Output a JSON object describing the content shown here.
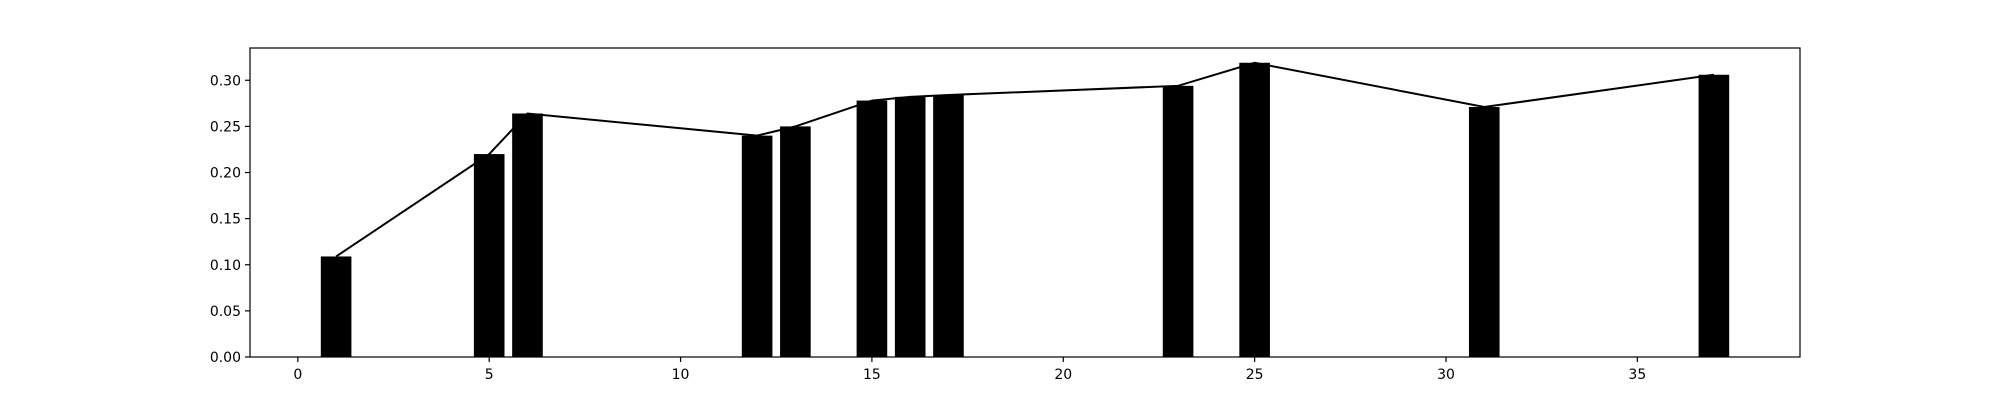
{
  "chart_data": {
    "type": "bar",
    "title": "",
    "xlabel": "",
    "ylabel": "",
    "xlim": [
      -1.25,
      39.25
    ],
    "ylim": [
      0,
      0.335
    ],
    "grid": false,
    "bar_width": 0.8,
    "bar_color": "#000000",
    "line_color": "#000000",
    "x_ticks": [
      0,
      5,
      10,
      15,
      20,
      25,
      30,
      35
    ],
    "x_tick_labels": [
      "0",
      "5",
      "10",
      "15",
      "20",
      "25",
      "30",
      "35"
    ],
    "y_ticks": [
      0.0,
      0.05,
      0.1,
      0.15,
      0.2,
      0.25,
      0.3
    ],
    "y_tick_labels": [
      "0.00",
      "0.05",
      "0.10",
      "0.15",
      "0.20",
      "0.25",
      "0.30"
    ],
    "series": [
      {
        "type": "bar",
        "x": [
          1,
          5,
          6,
          12,
          13,
          15,
          16,
          17,
          23,
          25,
          31,
          37
        ],
        "values": [
          0.109,
          0.22,
          0.264,
          0.24,
          0.25,
          0.278,
          0.282,
          0.284,
          0.294,
          0.319,
          0.271,
          0.306
        ]
      },
      {
        "type": "line",
        "x": [
          1,
          5,
          6,
          12,
          13,
          15,
          16,
          17,
          23,
          25,
          31,
          37
        ],
        "values": [
          0.109,
          0.22,
          0.264,
          0.24,
          0.25,
          0.278,
          0.282,
          0.284,
          0.294,
          0.319,
          0.271,
          0.306
        ]
      }
    ]
  }
}
